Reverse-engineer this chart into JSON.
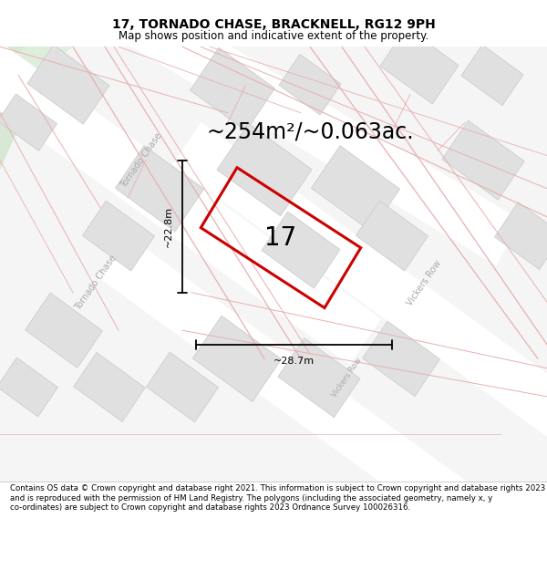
{
  "title": "17, TORNADO CHASE, BRACKNELL, RG12 9PH",
  "subtitle": "Map shows position and indicative extent of the property.",
  "area_text": "~254m²/~0.063ac.",
  "number_label": "17",
  "dim_width": "~28.7m",
  "dim_height": "~22.8m",
  "footer": "Contains OS data © Crown copyright and database right 2021. This information is subject to Crown copyright and database rights 2023 and is reproduced with the permission of HM Land Registry. The polygons (including the associated geometry, namely x, y co-ordinates) are subject to Crown copyright and database rights 2023 Ordnance Survey 100026316.",
  "bg_color": "#f5f5f5",
  "road_white": "#ffffff",
  "block_fill": "#e0e0e0",
  "block_edge": "#c8c8c8",
  "pink_road": "#e8b0b0",
  "green_fill": "#ddeedd",
  "title_fontsize": 10,
  "subtitle_fontsize": 8.5,
  "area_fontsize": 17,
  "number_fontsize": 20,
  "dim_fontsize": 8,
  "street_fontsize": 7,
  "footer_fontsize": 6.2
}
